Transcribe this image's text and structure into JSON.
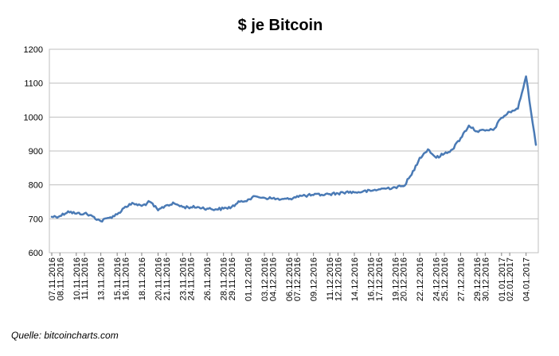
{
  "chart_data": {
    "type": "line",
    "title": "$ je Bitcoin",
    "xlabel": "",
    "ylabel": "",
    "ylim": [
      600,
      1200
    ],
    "y_ticks": [
      "600",
      "700",
      "800",
      "900",
      "1000",
      "1100",
      "1200"
    ],
    "x_tick_labels": [
      "07.11.2016",
      "08.11.2016",
      "10.11.2016",
      "11.11.2016",
      "13.11.2016",
      "15.11.2016",
      "16.11.2016",
      "18.11.2016",
      "20.11.2016",
      "21.11.2016",
      "23.11.2016",
      "24.11.2016",
      "26.11.2016",
      "28.11.2016",
      "29.11.2016",
      "01.12.2016",
      "03.12.2016",
      "04.12.2016",
      "06.12.2016",
      "07.12.2016",
      "09.12.2016",
      "11.12.2016",
      "12.12.2016",
      "14.12.2016",
      "16.12.2016",
      "17.12.2016",
      "19.12.2016",
      "20.12.2016",
      "22.12.2016",
      "24.12.2016",
      "25.12.2016",
      "27.12.2016",
      "29.12.2016",
      "30.12.2016",
      "01.01.2017",
      "02.01.2017",
      "04.01.2017"
    ],
    "grid": true,
    "legend": "none",
    "line_color": "#4a7ab5",
    "series": [
      {
        "x": [
          "07.11.2016",
          "08.11.2016",
          "09.11.2016",
          "10.11.2016",
          "11.11.2016",
          "12.11.2016",
          "13.11.2016",
          "14.11.2016",
          "15.11.2016",
          "16.11.2016",
          "17.11.2016",
          "18.11.2016",
          "19.11.2016",
          "20.11.2016",
          "21.11.2016",
          "22.11.2016",
          "23.11.2016",
          "24.11.2016",
          "25.11.2016",
          "26.11.2016",
          "27.11.2016",
          "28.11.2016",
          "29.11.2016",
          "30.11.2016",
          "01.12.2016",
          "02.12.2016",
          "03.12.2016",
          "04.12.2016",
          "05.12.2016",
          "06.12.2016",
          "07.12.2016",
          "08.12.2016",
          "09.12.2016",
          "10.12.2016",
          "11.12.2016",
          "12.12.2016",
          "13.12.2016",
          "14.12.2016",
          "15.12.2016",
          "16.12.2016",
          "17.12.2016",
          "18.12.2016",
          "19.12.2016",
          "20.12.2016",
          "21.12.2016",
          "22.12.2016",
          "23.12.2016",
          "24.12.2016",
          "25.12.2016",
          "26.12.2016",
          "27.12.2016",
          "28.12.2016",
          "29.12.2016",
          "30.12.2016",
          "31.12.2016",
          "01.01.2017",
          "02.01.2017",
          "03.01.2017",
          "04.01.2017",
          "05.01.2017"
        ],
        "values": [
          706,
          708,
          722,
          715,
          716,
          707,
          693,
          703,
          713,
          736,
          745,
          738,
          750,
          725,
          740,
          745,
          735,
          734,
          734,
          730,
          728,
          730,
          735,
          750,
          757,
          766,
          762,
          760,
          757,
          758,
          767,
          768,
          770,
          771,
          773,
          775,
          779,
          778,
          780,
          782,
          787,
          790,
          793,
          796,
          830,
          880,
          905,
          880,
          892,
          905,
          938,
          975,
          958,
          960,
          962,
          998,
          1015,
          1025,
          1120,
          918
        ]
      }
    ]
  },
  "source": "Quelle: bitcoincharts.com"
}
